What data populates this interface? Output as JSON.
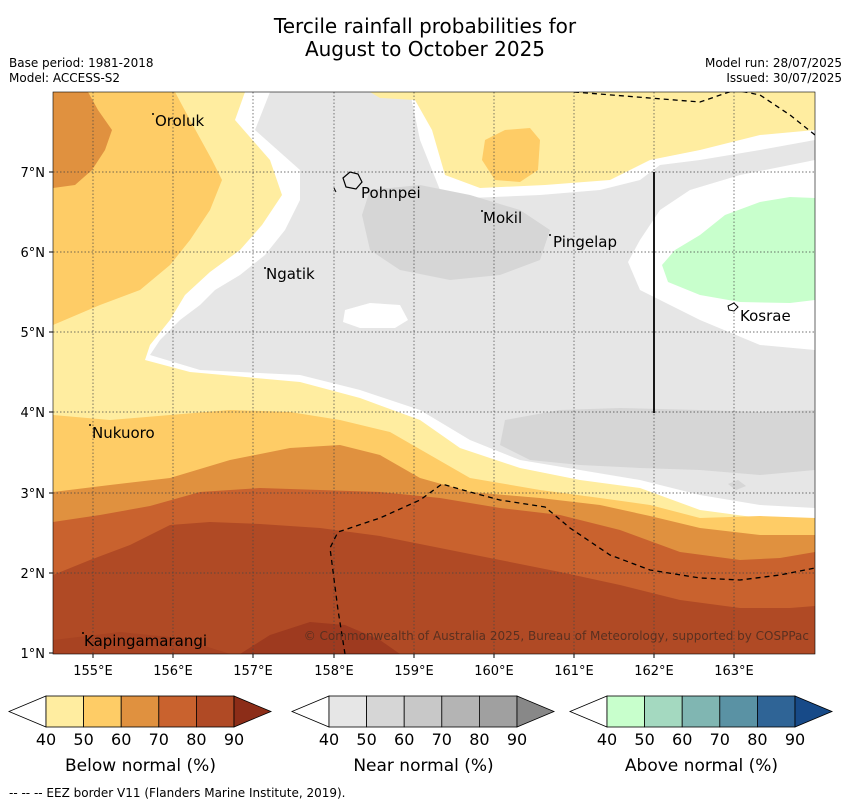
{
  "title_line1": "Tercile rainfall probabilities for",
  "title_line2": "August to October 2025",
  "base_period": "Base period: 1981-2018",
  "model": "Model: ACCESS-S2",
  "model_run": "Model run: 28/07/2025",
  "issued": "Issued: 30/07/2025",
  "copyright": "© Commonwealth of Australia 2025, Bureau of Meteorology, supported by COSPPac",
  "footer": "--  --  -- EEZ border V11 (Flanders Marine Institute, 2019).",
  "lat_labels": [
    "7°N",
    "6°N",
    "5°N",
    "4°N",
    "3°N",
    "2°N",
    "1°N"
  ],
  "lon_labels": [
    "155°E",
    "156°E",
    "157°E",
    "158°E",
    "159°E",
    "160°E",
    "161°E",
    "162°E",
    "163°E"
  ],
  "places": {
    "oroluk": "Oroluk",
    "pohnpei": "Pohnpei",
    "mokil": "Mokil",
    "pingelap": "Pingelap",
    "ngatik": "Ngatik",
    "kosrae": "Kosrae",
    "nukuoro": "Nukuoro",
    "kapingamarangi": "Kapingamarangi"
  },
  "colorbars": [
    {
      "label": "Below normal (%)",
      "ticks": [
        "40",
        "50",
        "60",
        "70",
        "80",
        "90"
      ],
      "colors": [
        "#ffeda0",
        "#fecc66",
        "#e0913f",
        "#c9622e",
        "#b04a25"
      ],
      "under": "#ffffff",
      "over": "#8c2d18"
    },
    {
      "label": "Near normal (%)",
      "ticks": [
        "40",
        "50",
        "60",
        "70",
        "80",
        "90"
      ],
      "colors": [
        "#e6e6e6",
        "#d6d6d6",
        "#c8c8c8",
        "#b4b4b4",
        "#a0a0a0"
      ],
      "under": "#ffffff",
      "over": "#888888"
    },
    {
      "label": "Above normal (%)",
      "ticks": [
        "40",
        "50",
        "60",
        "70",
        "80",
        "90"
      ],
      "colors": [
        "#c8ffcc",
        "#a4d9c0",
        "#80b6b2",
        "#5a92a4",
        "#2f6496"
      ],
      "under": "#ffffff",
      "over": "#174a88"
    }
  ]
}
